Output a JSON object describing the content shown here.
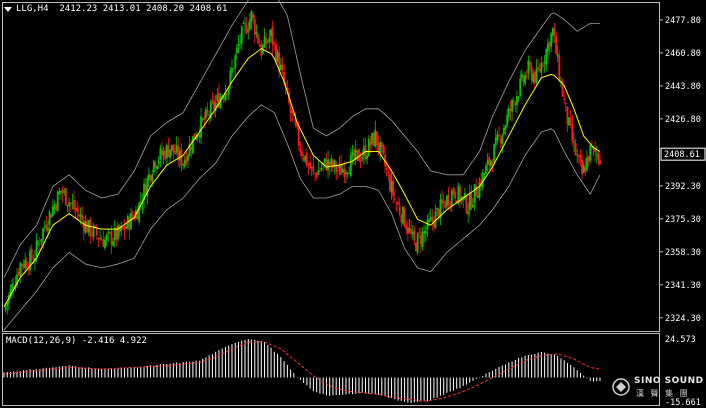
{
  "header": {
    "symbol": "LLG,H4",
    "open": "2412.23",
    "high": "2413.01",
    "low": "2408.20",
    "close": "2408.61"
  },
  "macd_header": {
    "label": "MACD(12,26,9)",
    "main": "-2.416",
    "signal": "4.922"
  },
  "logo": {
    "line1": "SINO SOUND",
    "line2": "漢 聲 集 團"
  },
  "colors": {
    "background": "#000000",
    "bull": "#00c800",
    "bear": "#ff1a1a",
    "ma": "#ffff00",
    "bands": "#a0a0a0",
    "macd_hist": "#ffffff",
    "macd_signal": "#ff3030"
  },
  "chart_data": [
    {
      "type": "candlestick",
      "ylim": [
        2318,
        2486
      ],
      "y_ticks": [
        2477.8,
        2460.8,
        2443.8,
        2426.8,
        2409.8,
        2392.3,
        2375.3,
        2358.3,
        2341.3,
        2324.3
      ],
      "y_tick_labels": [
        "2477.80",
        "2460.80",
        "2443.80",
        "2426.80",
        "2392.30",
        "2375.30",
        "2358.30",
        "2341.30",
        "2324.30"
      ],
      "current_price_label": "2408.61",
      "close_path": [
        [
          0,
          2328
        ],
        [
          10,
          2352
        ],
        [
          18,
          2355
        ],
        [
          25,
          2372
        ],
        [
          35,
          2390
        ],
        [
          42,
          2382
        ],
        [
          52,
          2370
        ],
        [
          62,
          2364
        ],
        [
          72,
          2368
        ],
        [
          82,
          2380
        ],
        [
          92,
          2405
        ],
        [
          102,
          2412
        ],
        [
          110,
          2405
        ],
        [
          118,
          2420
        ],
        [
          128,
          2432
        ],
        [
          138,
          2445
        ],
        [
          145,
          2468
        ],
        [
          152,
          2480
        ],
        [
          158,
          2462
        ],
        [
          164,
          2470
        ],
        [
          170,
          2452
        ],
        [
          176,
          2430
        ],
        [
          182,
          2412
        ],
        [
          190,
          2398
        ],
        [
          198,
          2404
        ],
        [
          206,
          2400
        ],
        [
          214,
          2405
        ],
        [
          222,
          2410
        ],
        [
          228,
          2418
        ],
        [
          233,
          2405
        ],
        [
          240,
          2385
        ],
        [
          246,
          2375
        ],
        [
          252,
          2362
        ],
        [
          258,
          2368
        ],
        [
          266,
          2378
        ],
        [
          276,
          2390
        ],
        [
          285,
          2382
        ],
        [
          293,
          2395
        ],
        [
          300,
          2408
        ],
        [
          308,
          2425
        ],
        [
          315,
          2440
        ],
        [
          322,
          2452
        ],
        [
          327,
          2448
        ],
        [
          332,
          2460
        ],
        [
          337,
          2472
        ],
        [
          341,
          2450
        ],
        [
          345,
          2430
        ],
        [
          350,
          2412
        ],
        [
          355,
          2398
        ],
        [
          360,
          2410
        ],
        [
          366,
          2408
        ]
      ],
      "ma_path": [
        [
          0,
          2330
        ],
        [
          10,
          2345
        ],
        [
          20,
          2355
        ],
        [
          30,
          2372
        ],
        [
          40,
          2378
        ],
        [
          50,
          2372
        ],
        [
          60,
          2370
        ],
        [
          70,
          2370
        ],
        [
          80,
          2376
        ],
        [
          90,
          2392
        ],
        [
          100,
          2403
        ],
        [
          110,
          2408
        ],
        [
          120,
          2420
        ],
        [
          130,
          2432
        ],
        [
          140,
          2446
        ],
        [
          150,
          2458
        ],
        [
          158,
          2463
        ],
        [
          165,
          2460
        ],
        [
          172,
          2446
        ],
        [
          180,
          2425
        ],
        [
          190,
          2408
        ],
        [
          198,
          2402
        ],
        [
          206,
          2403
        ],
        [
          214,
          2405
        ],
        [
          222,
          2410
        ],
        [
          230,
          2410
        ],
        [
          238,
          2400
        ],
        [
          246,
          2388
        ],
        [
          254,
          2375
        ],
        [
          262,
          2372
        ],
        [
          272,
          2380
        ],
        [
          282,
          2386
        ],
        [
          292,
          2392
        ],
        [
          300,
          2402
        ],
        [
          310,
          2418
        ],
        [
          320,
          2434
        ],
        [
          330,
          2448
        ],
        [
          337,
          2450
        ],
        [
          344,
          2444
        ],
        [
          350,
          2432
        ],
        [
          356,
          2418
        ],
        [
          362,
          2412
        ],
        [
          366,
          2410
        ]
      ],
      "upper_band_path": [
        [
          0,
          2345
        ],
        [
          10,
          2362
        ],
        [
          20,
          2372
        ],
        [
          30,
          2392
        ],
        [
          40,
          2398
        ],
        [
          50,
          2390
        ],
        [
          60,
          2386
        ],
        [
          70,
          2388
        ],
        [
          80,
          2400
        ],
        [
          90,
          2418
        ],
        [
          100,
          2425
        ],
        [
          110,
          2430
        ],
        [
          120,
          2445
        ],
        [
          130,
          2460
        ],
        [
          140,
          2475
        ],
        [
          150,
          2488
        ],
        [
          158,
          2495
        ],
        [
          166,
          2492
        ],
        [
          174,
          2480
        ],
        [
          182,
          2450
        ],
        [
          190,
          2422
        ],
        [
          198,
          2418
        ],
        [
          206,
          2422
        ],
        [
          214,
          2428
        ],
        [
          222,
          2432
        ],
        [
          230,
          2432
        ],
        [
          238,
          2426
        ],
        [
          246,
          2418
        ],
        [
          254,
          2410
        ],
        [
          262,
          2400
        ],
        [
          272,
          2398
        ],
        [
          282,
          2398
        ],
        [
          292,
          2410
        ],
        [
          300,
          2428
        ],
        [
          310,
          2446
        ],
        [
          320,
          2462
        ],
        [
          330,
          2474
        ],
        [
          337,
          2482
        ],
        [
          344,
          2478
        ],
        [
          352,
          2472
        ],
        [
          360,
          2476
        ],
        [
          366,
          2476
        ]
      ],
      "lower_band_path": [
        [
          0,
          2318
        ],
        [
          10,
          2328
        ],
        [
          20,
          2338
        ],
        [
          30,
          2350
        ],
        [
          40,
          2358
        ],
        [
          50,
          2352
        ],
        [
          60,
          2350
        ],
        [
          70,
          2352
        ],
        [
          80,
          2355
        ],
        [
          90,
          2370
        ],
        [
          100,
          2380
        ],
        [
          110,
          2386
        ],
        [
          120,
          2396
        ],
        [
          130,
          2404
        ],
        [
          140,
          2418
        ],
        [
          150,
          2428
        ],
        [
          158,
          2434
        ],
        [
          166,
          2430
        ],
        [
          174,
          2414
        ],
        [
          182,
          2396
        ],
        [
          190,
          2386
        ],
        [
          198,
          2386
        ],
        [
          206,
          2388
        ],
        [
          214,
          2392
        ],
        [
          222,
          2392
        ],
        [
          230,
          2390
        ],
        [
          238,
          2378
        ],
        [
          246,
          2360
        ],
        [
          254,
          2350
        ],
        [
          262,
          2348
        ],
        [
          272,
          2358
        ],
        [
          282,
          2365
        ],
        [
          292,
          2372
        ],
        [
          300,
          2380
        ],
        [
          310,
          2392
        ],
        [
          320,
          2408
        ],
        [
          330,
          2420
        ],
        [
          337,
          2422
        ],
        [
          344,
          2410
        ],
        [
          352,
          2398
        ],
        [
          360,
          2388
        ],
        [
          366,
          2398
        ]
      ]
    },
    {
      "type": "bar",
      "title": "MACD(12,26,9)",
      "ylim": [
        -15.661,
        24.573
      ],
      "y_tick_labels": [
        "24.573",
        "-15.661"
      ],
      "hist_path": [
        [
          0,
          3
        ],
        [
          20,
          5
        ],
        [
          40,
          7
        ],
        [
          60,
          5
        ],
        [
          80,
          6
        ],
        [
          100,
          8
        ],
        [
          120,
          10
        ],
        [
          130,
          15
        ],
        [
          140,
          20
        ],
        [
          150,
          23
        ],
        [
          160,
          21
        ],
        [
          170,
          12
        ],
        [
          180,
          0
        ],
        [
          190,
          -8
        ],
        [
          200,
          -11
        ],
        [
          210,
          -10
        ],
        [
          220,
          -9
        ],
        [
          230,
          -10
        ],
        [
          240,
          -13
        ],
        [
          250,
          -15
        ],
        [
          260,
          -14
        ],
        [
          270,
          -10
        ],
        [
          280,
          -6
        ],
        [
          290,
          -1
        ],
        [
          300,
          4
        ],
        [
          310,
          9
        ],
        [
          320,
          13
        ],
        [
          330,
          15
        ],
        [
          340,
          13
        ],
        [
          350,
          6
        ],
        [
          360,
          -2
        ],
        [
          366,
          -2.4
        ]
      ],
      "signal_path": [
        [
          0,
          2
        ],
        [
          20,
          4
        ],
        [
          40,
          6
        ],
        [
          60,
          5
        ],
        [
          80,
          6
        ],
        [
          100,
          7
        ],
        [
          120,
          9
        ],
        [
          130,
          12
        ],
        [
          140,
          17
        ],
        [
          150,
          21
        ],
        [
          160,
          21
        ],
        [
          170,
          17
        ],
        [
          180,
          9
        ],
        [
          190,
          1
        ],
        [
          200,
          -5
        ],
        [
          210,
          -8
        ],
        [
          220,
          -9
        ],
        [
          230,
          -10
        ],
        [
          240,
          -12
        ],
        [
          250,
          -13
        ],
        [
          260,
          -14
        ],
        [
          270,
          -12
        ],
        [
          280,
          -9
        ],
        [
          290,
          -5
        ],
        [
          300,
          0
        ],
        [
          310,
          5
        ],
        [
          320,
          10
        ],
        [
          330,
          13
        ],
        [
          340,
          14
        ],
        [
          350,
          11
        ],
        [
          360,
          6
        ],
        [
          366,
          4.9
        ]
      ]
    }
  ]
}
